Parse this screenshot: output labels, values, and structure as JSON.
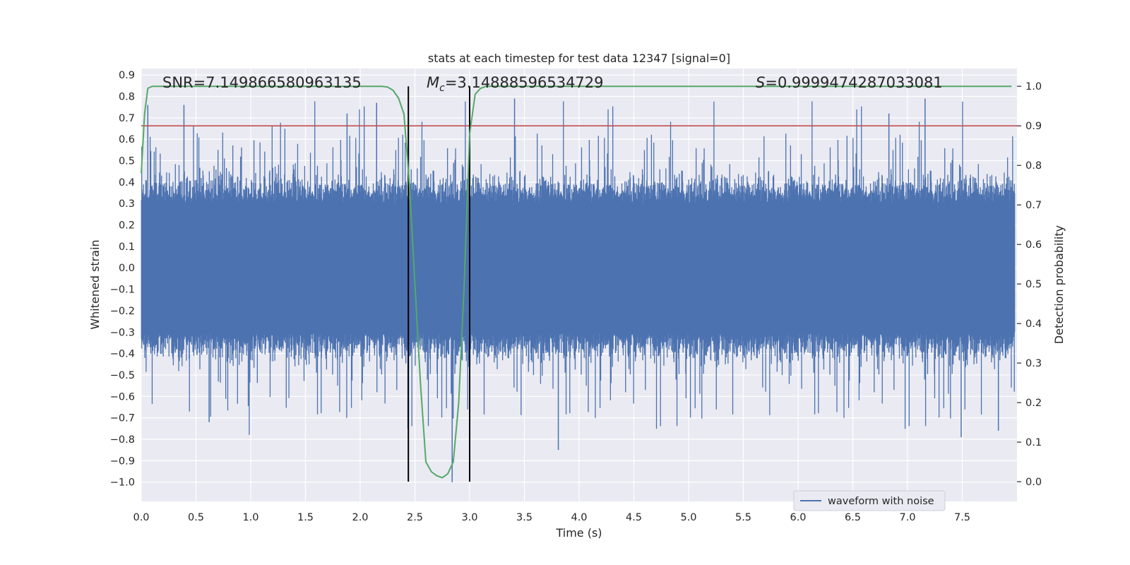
{
  "chart_data": {
    "type": "line",
    "title": "stats at each timestep for test data 12347 [signal=0]",
    "xlabel": "Time (s)",
    "ylabel_left": "Whitened strain",
    "ylabel_right": "Detection probability",
    "xlim": [
      0.0,
      8.0
    ],
    "ylim_left": [
      -1.09,
      0.93
    ],
    "ylim_right": [
      -0.05,
      1.045
    ],
    "x_ticks": [
      0.0,
      0.5,
      1.0,
      1.5,
      2.0,
      2.5,
      3.0,
      3.5,
      4.0,
      4.5,
      5.0,
      5.5,
      6.0,
      6.5,
      7.0,
      7.5
    ],
    "x_tick_labels": [
      "0.0",
      "0.5",
      "1.0",
      "1.5",
      "2.0",
      "2.5",
      "3.0",
      "3.5",
      "4.0",
      "4.5",
      "5.0",
      "5.5",
      "6.0",
      "6.5",
      "7.0",
      "7.5"
    ],
    "y_ticks_left": [
      0.9,
      0.8,
      0.7,
      0.6,
      0.5,
      0.4,
      0.3,
      0.2,
      0.1,
      0.0,
      -0.1,
      -0.2,
      -0.3,
      -0.4,
      -0.5,
      -0.6,
      -0.7,
      -0.8,
      -0.9,
      -1.0
    ],
    "y_tick_labels_left": [
      "0.9",
      "0.8",
      "0.7",
      "0.6",
      "0.5",
      "0.4",
      "0.3",
      "0.2",
      "0.1",
      "0.0",
      "−0.1",
      "−0.2",
      "−0.3",
      "−0.4",
      "−0.5",
      "−0.6",
      "−0.7",
      "−0.8",
      "−0.9",
      "−1.0"
    ],
    "y_ticks_right": [
      1.0,
      0.9,
      0.8,
      0.7,
      0.6,
      0.5,
      0.4,
      0.3,
      0.2,
      0.1,
      0.0
    ],
    "y_tick_labels_right": [
      "1.0",
      "0.9",
      "0.8",
      "0.7",
      "0.6",
      "0.5",
      "0.4",
      "0.3",
      "0.2",
      "0.1",
      "0.0"
    ],
    "grid": true,
    "annotations": {
      "snr": "SNR=7.149866580963135",
      "mc_symbol": "M",
      "mc_sub": "c",
      "mc_value": "=3.14888596534729",
      "s_symbol": "S",
      "s_value": "=0.9999474287033081"
    },
    "threshold_line": {
      "y_right": 0.9,
      "color": "#c44e52"
    },
    "vertical_lines": {
      "x": [
        2.44,
        3.0
      ],
      "color": "#000000"
    },
    "waveform": {
      "name": "waveform with noise",
      "color": "#4c72b0",
      "envelope_typical": 0.3,
      "envelope_min": -1.0,
      "envelope_max": 0.79
    },
    "probability": {
      "color": "#55a868",
      "x": [
        0.0,
        0.03,
        0.06,
        0.1,
        0.15,
        0.2,
        0.5,
        1.0,
        1.5,
        2.0,
        2.1,
        2.2,
        2.25,
        2.3,
        2.35,
        2.4,
        2.45,
        2.5,
        2.55,
        2.6,
        2.65,
        2.7,
        2.75,
        2.8,
        2.85,
        2.9,
        2.95,
        3.0,
        3.05,
        3.1,
        3.15,
        3.2,
        3.5,
        4.0,
        4.5,
        5.0,
        5.5,
        6.0,
        6.5,
        7.0,
        7.5,
        7.95
      ],
      "y": [
        0.78,
        0.93,
        0.995,
        1.0,
        1.0,
        1.0,
        1.0,
        1.0,
        1.0,
        1.0,
        1.0,
        1.0,
        0.998,
        0.99,
        0.97,
        0.93,
        0.75,
        0.5,
        0.25,
        0.05,
        0.025,
        0.015,
        0.01,
        0.02,
        0.05,
        0.2,
        0.5,
        0.88,
        0.98,
        0.995,
        1.0,
        1.0,
        1.0,
        1.0,
        1.0,
        1.0,
        1.0,
        1.0,
        1.0,
        1.0,
        1.0,
        1.0
      ]
    },
    "legend": {
      "placement": "lower-right",
      "entries": [
        "waveform with noise"
      ]
    }
  },
  "colors": {
    "plot_background": "#eaeaf2",
    "grid": "#ffffff",
    "text": "#262626"
  }
}
